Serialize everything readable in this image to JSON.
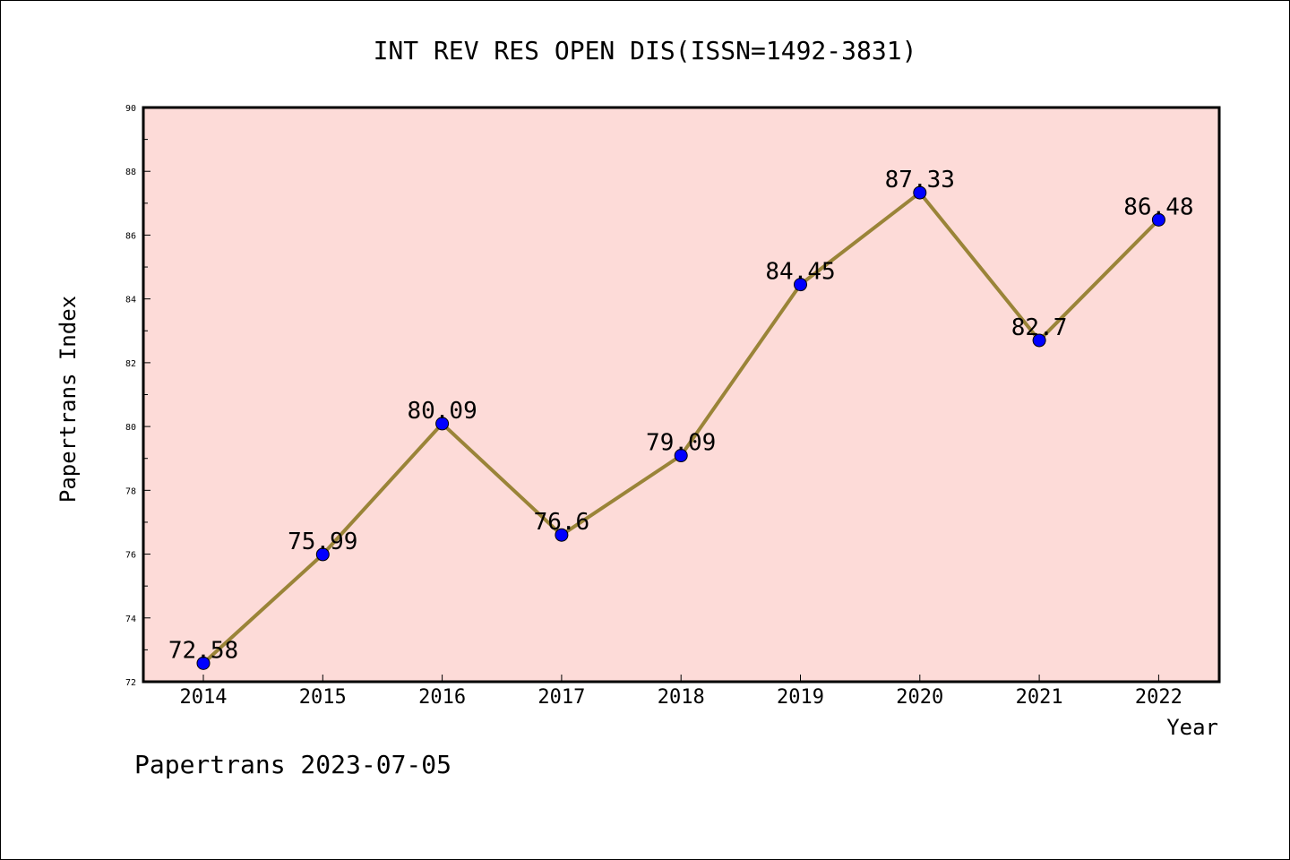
{
  "chart_data": {
    "type": "line",
    "title": "INT REV RES OPEN DIS(ISSN=1492-3831)",
    "xlabel": "Year",
    "ylabel": "Papertrans Index",
    "categories": [
      "2014",
      "2015",
      "2016",
      "2017",
      "2018",
      "2019",
      "2020",
      "2021",
      "2022"
    ],
    "series": [
      {
        "values": [
          72.58,
          75.99,
          80.09,
          76.6,
          79.09,
          84.45,
          87.33,
          82.7,
          86.48
        ]
      }
    ],
    "data_labels": [
      "72.58",
      "75.99",
      "80.09",
      "76.6",
      "79.09",
      "84.45",
      "87.33",
      "82.7",
      "86.48"
    ],
    "ylim": [
      72,
      90
    ],
    "yticks": [
      "72",
      "74",
      "76",
      "78",
      "80",
      "82",
      "84",
      "86",
      "88",
      "90"
    ],
    "grid": false,
    "plot_background": "#fddbd8",
    "line_color": "#9a8438",
    "marker_color": "#0000ff"
  },
  "footer": "Papertrans 2023-07-05"
}
